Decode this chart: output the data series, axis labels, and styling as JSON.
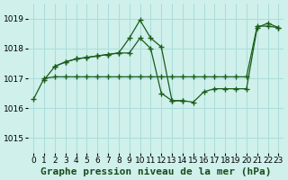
{
  "title": "Graphe pression niveau de la mer (hPa)",
  "bg_color": "#cff0eb",
  "grid_color": "#aaddda",
  "line_color": "#1a5c1a",
  "xlim": [
    -0.5,
    23.5
  ],
  "ylim": [
    1014.5,
    1019.5
  ],
  "yticks": [
    1015,
    1016,
    1017,
    1018,
    1019
  ],
  "xticks": [
    0,
    1,
    2,
    3,
    4,
    5,
    6,
    7,
    8,
    9,
    10,
    11,
    12,
    13,
    14,
    15,
    16,
    17,
    18,
    19,
    20,
    21,
    22,
    23
  ],
  "series1_x": [
    0,
    1,
    2,
    3,
    4,
    5,
    6,
    7,
    8,
    9,
    10,
    11,
    12,
    13,
    14,
    15,
    16,
    17,
    18,
    19,
    20,
    21,
    22,
    23
  ],
  "series1_y": [
    1016.3,
    1017.0,
    1017.05,
    1017.05,
    1017.05,
    1017.05,
    1017.05,
    1017.05,
    1017.05,
    1017.05,
    1017.05,
    1017.05,
    1017.05,
    1017.05,
    1017.05,
    1017.05,
    1017.05,
    1017.05,
    1017.05,
    1017.05,
    1017.05,
    1018.75,
    1018.75,
    1018.7
  ],
  "series2_x": [
    1,
    2,
    3,
    4,
    5,
    6,
    7,
    8,
    9,
    10,
    11,
    12,
    13,
    14,
    15,
    16,
    17,
    18,
    19,
    20,
    21,
    22,
    23
  ],
  "series2_y": [
    1016.95,
    1017.4,
    1017.55,
    1017.65,
    1017.7,
    1017.75,
    1017.8,
    1017.85,
    1017.85,
    1018.35,
    1018.0,
    1016.5,
    1016.25,
    1016.25,
    1016.2,
    1016.55,
    1016.65,
    1016.65,
    1016.65,
    1016.65,
    1018.7,
    1018.85,
    1018.7
  ],
  "series3_x": [
    2,
    3,
    4,
    5,
    6,
    7,
    8,
    9,
    10,
    11,
    12,
    13,
    14
  ],
  "series3_y": [
    1017.4,
    1017.55,
    1017.65,
    1017.7,
    1017.75,
    1017.8,
    1017.85,
    1018.35,
    1018.95,
    1018.35,
    1018.05,
    1016.25,
    1016.25
  ],
  "title_fontsize": 8,
  "tick_fontsize": 6.5
}
